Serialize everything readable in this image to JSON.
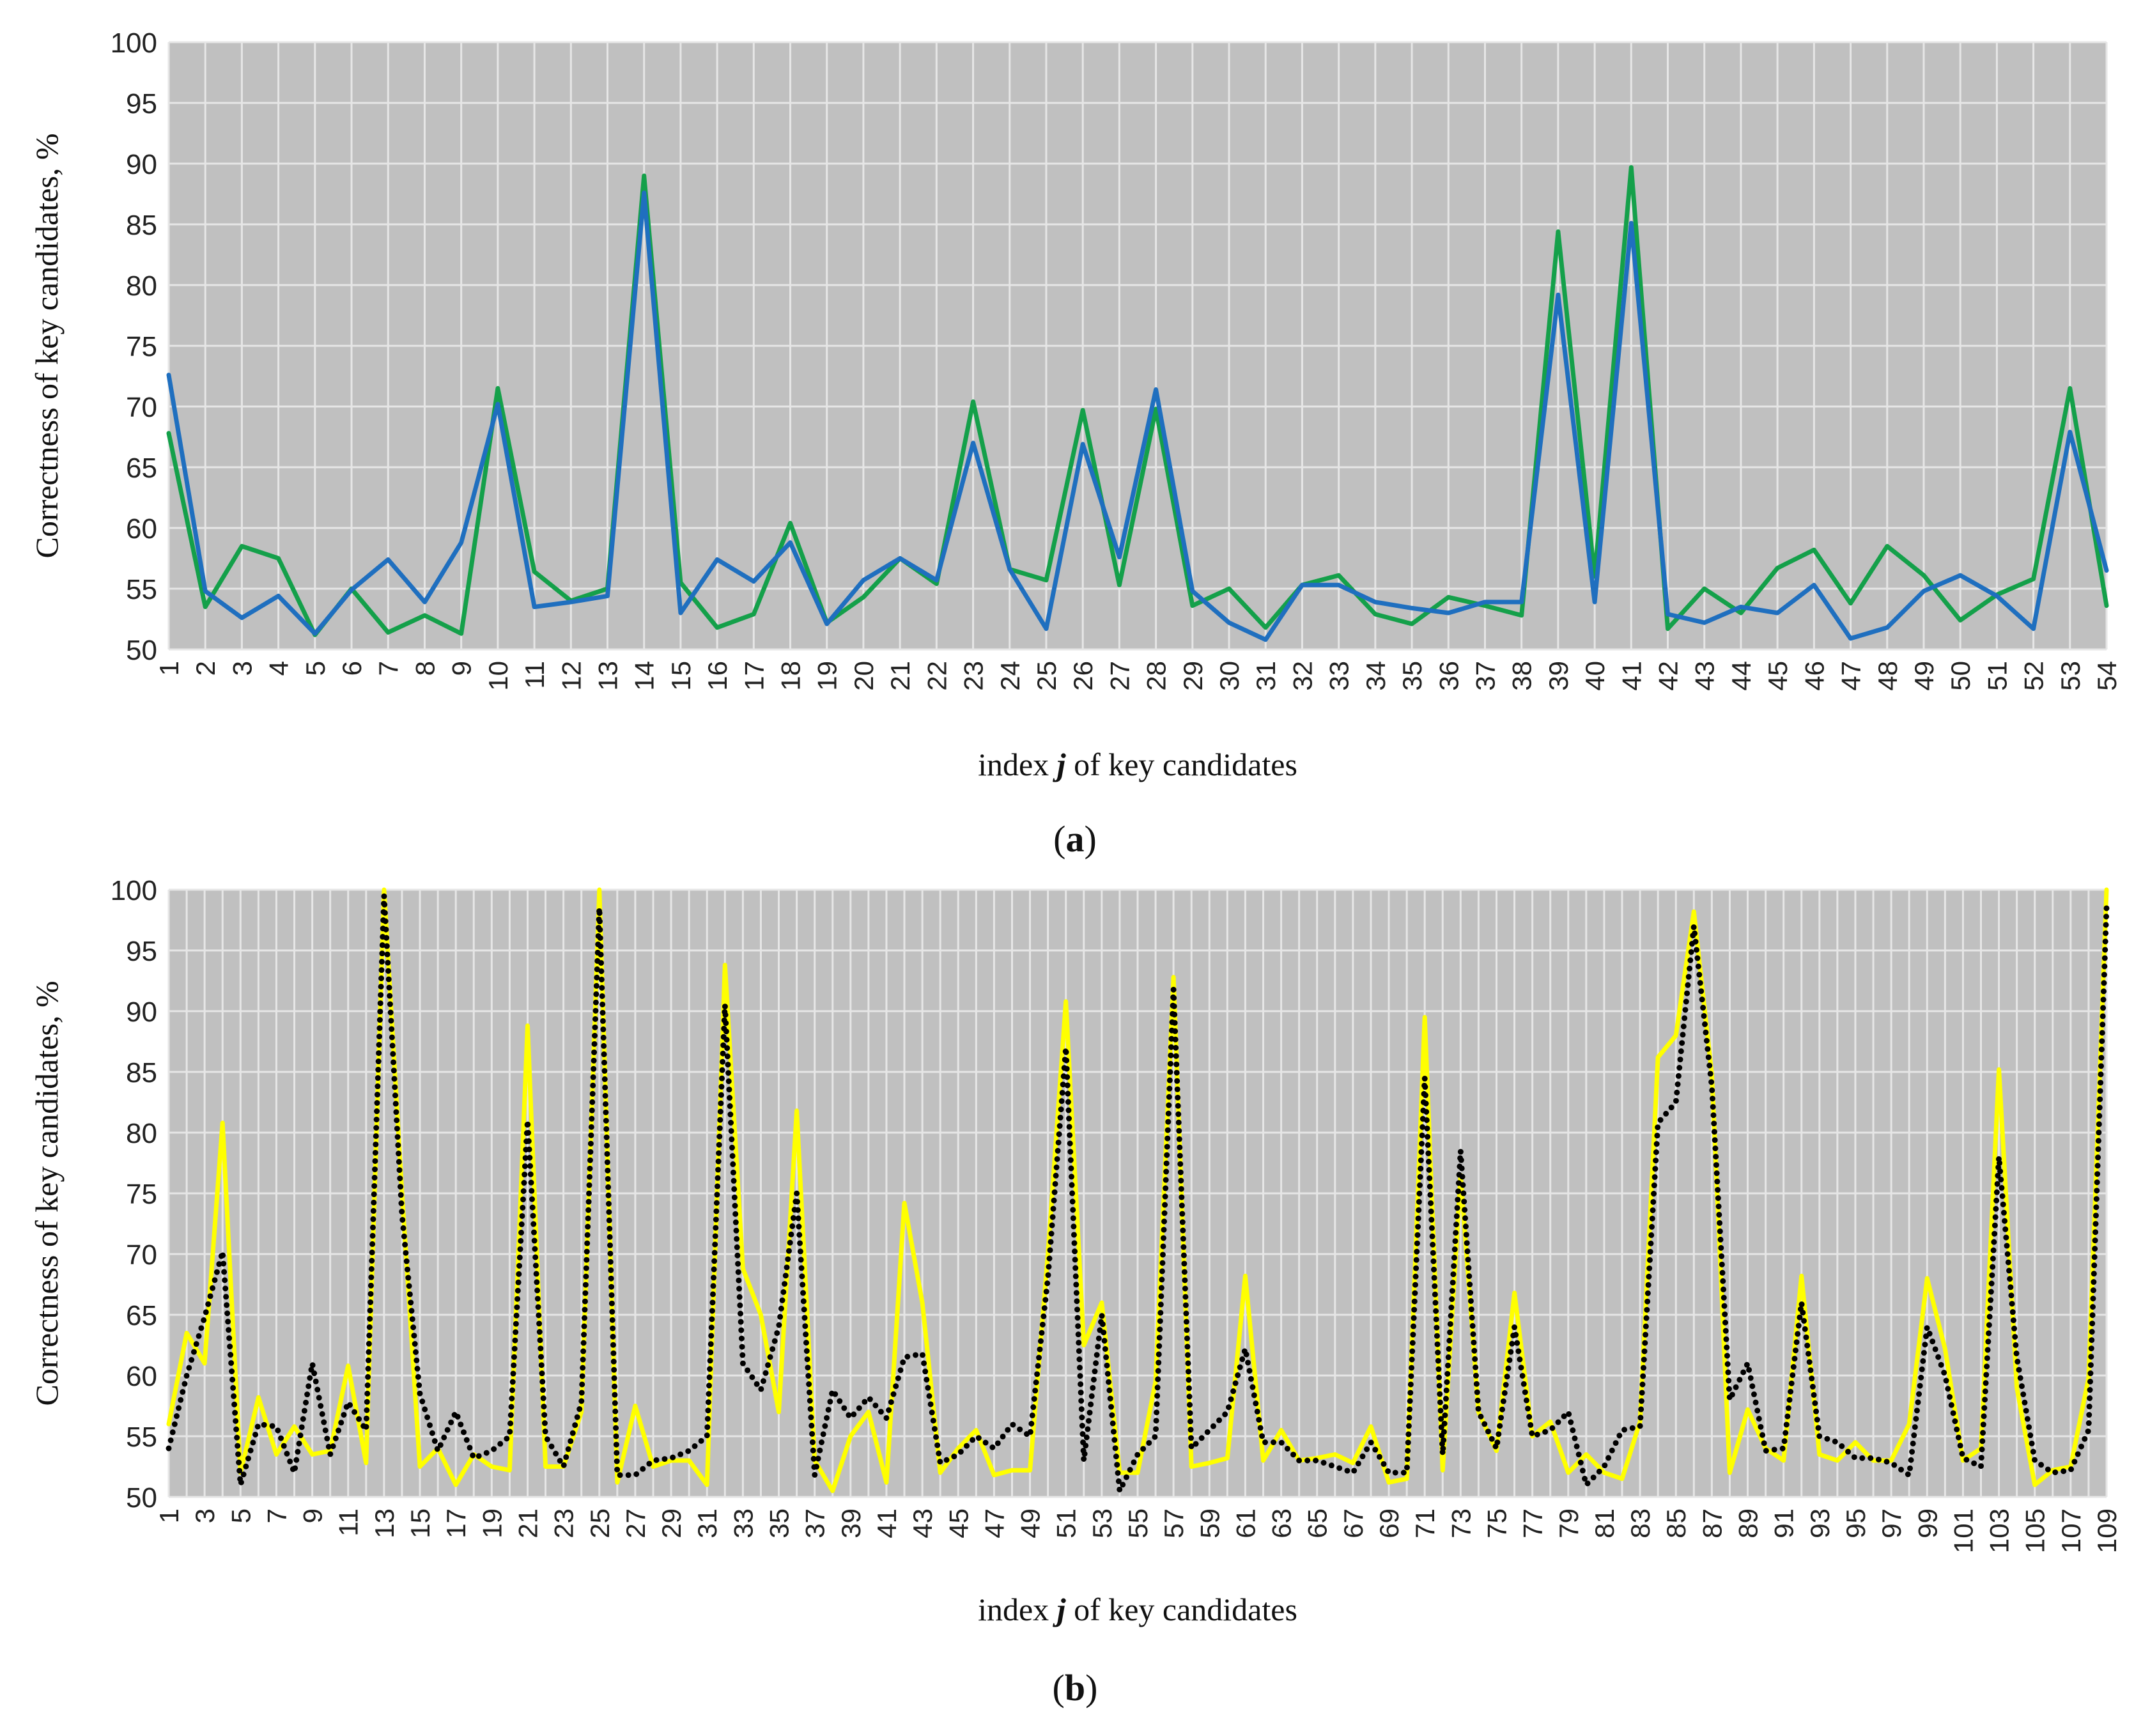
{
  "chart_data": [
    {
      "type": "line",
      "panel_label": "(a)",
      "panel_letter": "a",
      "xlabel_prefix": "index ",
      "xlabel_var": "j",
      "xlabel_suffix": " of key candidates",
      "ylabel": "Correctness of key candidates, %",
      "ylim": [
        50,
        100
      ],
      "yticks": [
        50,
        55,
        60,
        65,
        70,
        75,
        80,
        85,
        90,
        95,
        100
      ],
      "x": [
        1,
        2,
        3,
        4,
        5,
        6,
        7,
        8,
        9,
        10,
        11,
        12,
        13,
        14,
        15,
        16,
        17,
        18,
        19,
        20,
        21,
        22,
        23,
        24,
        25,
        26,
        27,
        28,
        29,
        30,
        31,
        32,
        33,
        34,
        35,
        36,
        37,
        38,
        39,
        40,
        41,
        42,
        43,
        44,
        45,
        46,
        47,
        48,
        49,
        50,
        51,
        52,
        53,
        54
      ],
      "xtick_step": 1,
      "grid": true,
      "plot_background": "#c0c0c0",
      "series": [
        {
          "name": "green series",
          "color": "#14a04a",
          "style": "solid",
          "values": [
            67.8,
            53.5,
            58.5,
            57.5,
            51.2,
            55.0,
            51.4,
            52.8,
            51.3,
            71.5,
            56.4,
            54.0,
            55.0,
            89.0,
            55.5,
            51.8,
            52.9,
            60.4,
            52.2,
            54.3,
            57.5,
            55.4,
            70.4,
            56.6,
            55.7,
            69.7,
            55.3,
            69.8,
            53.6,
            55.0,
            51.8,
            55.3,
            56.1,
            52.9,
            52.1,
            54.3,
            53.6,
            52.8,
            84.4,
            56.0,
            89.7,
            51.7,
            55.0,
            53.0,
            56.7,
            58.2,
            53.8,
            58.5,
            56.1,
            52.4,
            54.5,
            55.8,
            71.5,
            53.6
          ]
        },
        {
          "name": "blue series",
          "color": "#1f6fbf",
          "style": "solid",
          "values": [
            72.6,
            54.8,
            52.6,
            54.4,
            51.3,
            54.9,
            57.4,
            53.9,
            58.8,
            70.2,
            53.5,
            53.9,
            54.4,
            87.6,
            53.0,
            57.4,
            55.6,
            58.8,
            52.1,
            55.7,
            57.5,
            55.7,
            67.0,
            56.6,
            51.7,
            66.9,
            57.6,
            71.4,
            54.8,
            52.2,
            50.8,
            55.3,
            55.3,
            53.9,
            53.4,
            53.0,
            53.9,
            53.9,
            79.2,
            53.9,
            85.1,
            52.9,
            52.2,
            53.5,
            53.0,
            55.3,
            50.9,
            51.8,
            54.8,
            56.1,
            54.4,
            51.7,
            67.9,
            56.5
          ]
        }
      ]
    },
    {
      "type": "line",
      "panel_label": "(b)",
      "panel_letter": "b",
      "xlabel_prefix": "index ",
      "xlabel_var": "j",
      "xlabel_suffix": " of key candidates",
      "ylabel": "Correctness of key candidates, %",
      "ylim": [
        50,
        100
      ],
      "yticks": [
        50,
        55,
        60,
        65,
        70,
        75,
        80,
        85,
        90,
        95,
        100
      ],
      "x": [
        1,
        2,
        3,
        4,
        5,
        6,
        7,
        8,
        9,
        10,
        11,
        12,
        13,
        14,
        15,
        16,
        17,
        18,
        19,
        20,
        21,
        22,
        23,
        24,
        25,
        26,
        27,
        28,
        29,
        30,
        31,
        32,
        33,
        34,
        35,
        36,
        37,
        38,
        39,
        40,
        41,
        42,
        43,
        44,
        45,
        46,
        47,
        48,
        49,
        50,
        51,
        52,
        53,
        54,
        55,
        56,
        57,
        58,
        59,
        60,
        61,
        62,
        63,
        64,
        65,
        66,
        67,
        68,
        69,
        70,
        71,
        72,
        73,
        74,
        75,
        76,
        77,
        78,
        79,
        80,
        81,
        82,
        83,
        84,
        85,
        86,
        87,
        88,
        89,
        90,
        91,
        92,
        93,
        94,
        95,
        96,
        97,
        98,
        99,
        100,
        101,
        102,
        103,
        104,
        105,
        106,
        107,
        108,
        109
      ],
      "xtick_step": 2,
      "grid": true,
      "plot_background": "#c0c0c0",
      "series": [
        {
          "name": "yellow series",
          "color": "#ffff00",
          "style": "solid",
          "values": [
            56.0,
            63.5,
            61.0,
            80.8,
            52.0,
            58.2,
            53.5,
            55.8,
            53.5,
            53.8,
            60.8,
            52.8,
            100.0,
            75.0,
            52.5,
            54.0,
            51.0,
            53.5,
            52.5,
            52.2,
            88.8,
            52.5,
            52.5,
            57.0,
            100.0,
            51.2,
            57.5,
            52.5,
            53.0,
            53.0,
            51.0,
            93.8,
            68.8,
            65.0,
            57.0,
            81.8,
            53.0,
            50.5,
            55.0,
            57.0,
            51.2,
            74.2,
            66.0,
            52.0,
            54.0,
            55.5,
            51.8,
            52.2,
            52.2,
            70.0,
            90.8,
            62.5,
            66.0,
            52.0,
            52.0,
            59.5,
            92.8,
            52.5,
            52.8,
            53.2,
            68.2,
            53.0,
            55.5,
            53.0,
            53.2,
            53.5,
            52.8,
            55.8,
            51.2,
            51.5,
            89.5,
            52.2,
            76.5,
            57.0,
            53.8,
            66.8,
            55.0,
            56.2,
            52.0,
            53.5,
            52.0,
            51.5,
            56.2,
            86.2,
            88.0,
            98.2,
            84.8,
            52.0,
            57.2,
            54.0,
            53.0,
            68.2,
            53.5,
            53.0,
            54.5,
            53.0,
            53.0,
            56.0,
            68.0,
            62.2,
            53.0,
            54.0,
            85.2,
            59.0,
            51.0,
            52.2,
            52.5,
            59.8,
            100.0
          ]
        },
        {
          "name": "black dotted series",
          "color": "#000000",
          "style": "dotted",
          "values": [
            54.0,
            60.0,
            64.8,
            70.2,
            51.0,
            56.0,
            55.8,
            52.0,
            61.0,
            53.5,
            57.8,
            55.5,
            99.5,
            73.2,
            58.5,
            53.8,
            57.0,
            53.2,
            53.8,
            55.0,
            81.0,
            55.0,
            52.5,
            57.8,
            98.5,
            51.8,
            51.8,
            53.0,
            53.2,
            53.8,
            55.0,
            90.5,
            61.0,
            58.8,
            64.0,
            75.0,
            51.8,
            58.8,
            56.5,
            58.2,
            56.5,
            61.5,
            61.8,
            52.8,
            53.5,
            55.0,
            54.0,
            56.0,
            55.0,
            68.0,
            87.0,
            53.0,
            65.0,
            50.5,
            53.5,
            55.0,
            91.8,
            54.0,
            55.5,
            57.0,
            62.2,
            54.5,
            54.5,
            53.0,
            53.0,
            52.5,
            52.0,
            54.5,
            52.0,
            52.0,
            84.5,
            53.5,
            78.5,
            57.0,
            54.0,
            64.0,
            55.0,
            55.5,
            57.0,
            51.0,
            52.5,
            55.5,
            55.8,
            80.8,
            82.5,
            97.0,
            83.8,
            58.0,
            61.0,
            53.8,
            54.0,
            66.0,
            55.0,
            54.5,
            53.2,
            53.2,
            52.8,
            51.8,
            64.0,
            60.0,
            53.2,
            52.5,
            78.0,
            61.5,
            53.0,
            52.0,
            52.2,
            55.5,
            98.5
          ]
        }
      ]
    }
  ]
}
